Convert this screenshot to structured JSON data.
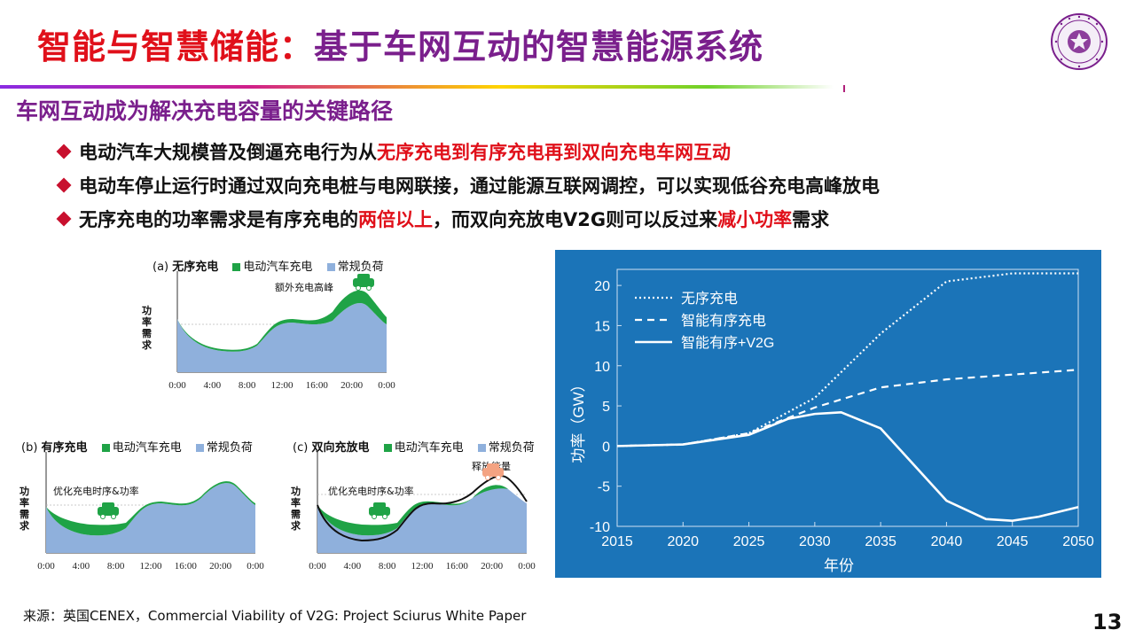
{
  "slide": {
    "title_part1": "智能与智慧储能：",
    "title_part2": "基于车网互动的智慧能源系统",
    "subtitle": "车网互动成为解决充电容量的关键路径",
    "page_number": "13",
    "source": "来源：英国CENEX，Commercial Viability of V2G: Project Sciurus White Paper"
  },
  "bullets": [
    {
      "parts": [
        "电动汽车大规模普及倒逼充电行为从",
        "无序充电到有序充电再到双向充电车网互动",
        ""
      ]
    },
    {
      "parts": [
        "电动车停止运行时通过双向充电桩与电网联接，通过能源互联网调控，可以实现低谷充电高峰放电",
        "",
        ""
      ]
    },
    {
      "parts": [
        "无序充电的功率需求是有序充电的",
        "两倍以上",
        "，而双向充放电V2G则可以反过来",
        "减小功率",
        "需求"
      ]
    }
  ],
  "profiles": {
    "legend_ev": "电动汽车充电",
    "legend_base": "常规负荷",
    "ylabel": "功率需求",
    "time_ticks": [
      "0:00",
      "4:00",
      "8:00",
      "12:00",
      "16:00",
      "20:00",
      "0:00"
    ],
    "panel_a": {
      "tag": "(a)",
      "name": "无序充电",
      "annotation": "额外充电高峰"
    },
    "panel_b": {
      "tag": "(b)",
      "name": "有序充电",
      "annotation": "优化充电时序&功率"
    },
    "panel_c": {
      "tag": "(c)",
      "name": "双向充放电",
      "annotation": "优化充电时序&功率",
      "annotation2": "释放能量"
    },
    "colors": {
      "ev": "#1fa346",
      "base": "#8fb0dc"
    }
  },
  "chart_data": {
    "type": "line",
    "xlabel": "年份",
    "ylabel": "功率（GW）",
    "xlim": [
      2015,
      2050
    ],
    "ylim": [
      -10,
      22
    ],
    "x_ticks": [
      2015,
      2020,
      2025,
      2030,
      2035,
      2040,
      2045,
      2050
    ],
    "y_ticks": [
      -10,
      -5,
      0,
      5,
      10,
      15,
      20
    ],
    "legend_position": "top-left",
    "background": "#1b74b8",
    "series": [
      {
        "name": "无序充电",
        "style": "dotted",
        "x": [
          2015,
          2020,
          2025,
          2030,
          2035,
          2040,
          2045,
          2050
        ],
        "y": [
          0,
          0.2,
          1.6,
          6.0,
          14.0,
          20.5,
          21.5,
          21.5
        ]
      },
      {
        "name": "智能有序充电",
        "style": "dashed",
        "x": [
          2015,
          2020,
          2025,
          2030,
          2035,
          2040,
          2045,
          2050
        ],
        "y": [
          0,
          0.2,
          1.6,
          4.8,
          7.3,
          8.3,
          8.9,
          9.5
        ]
      },
      {
        "name": "智能有序+V2G",
        "style": "solid",
        "x": [
          2015,
          2020,
          2025,
          2028,
          2030,
          2032,
          2035,
          2040,
          2043,
          2045,
          2047,
          2050
        ],
        "y": [
          0,
          0.2,
          1.4,
          3.4,
          4.0,
          4.2,
          2.2,
          -6.8,
          -9.1,
          -9.3,
          -8.8,
          -7.6
        ]
      }
    ]
  }
}
